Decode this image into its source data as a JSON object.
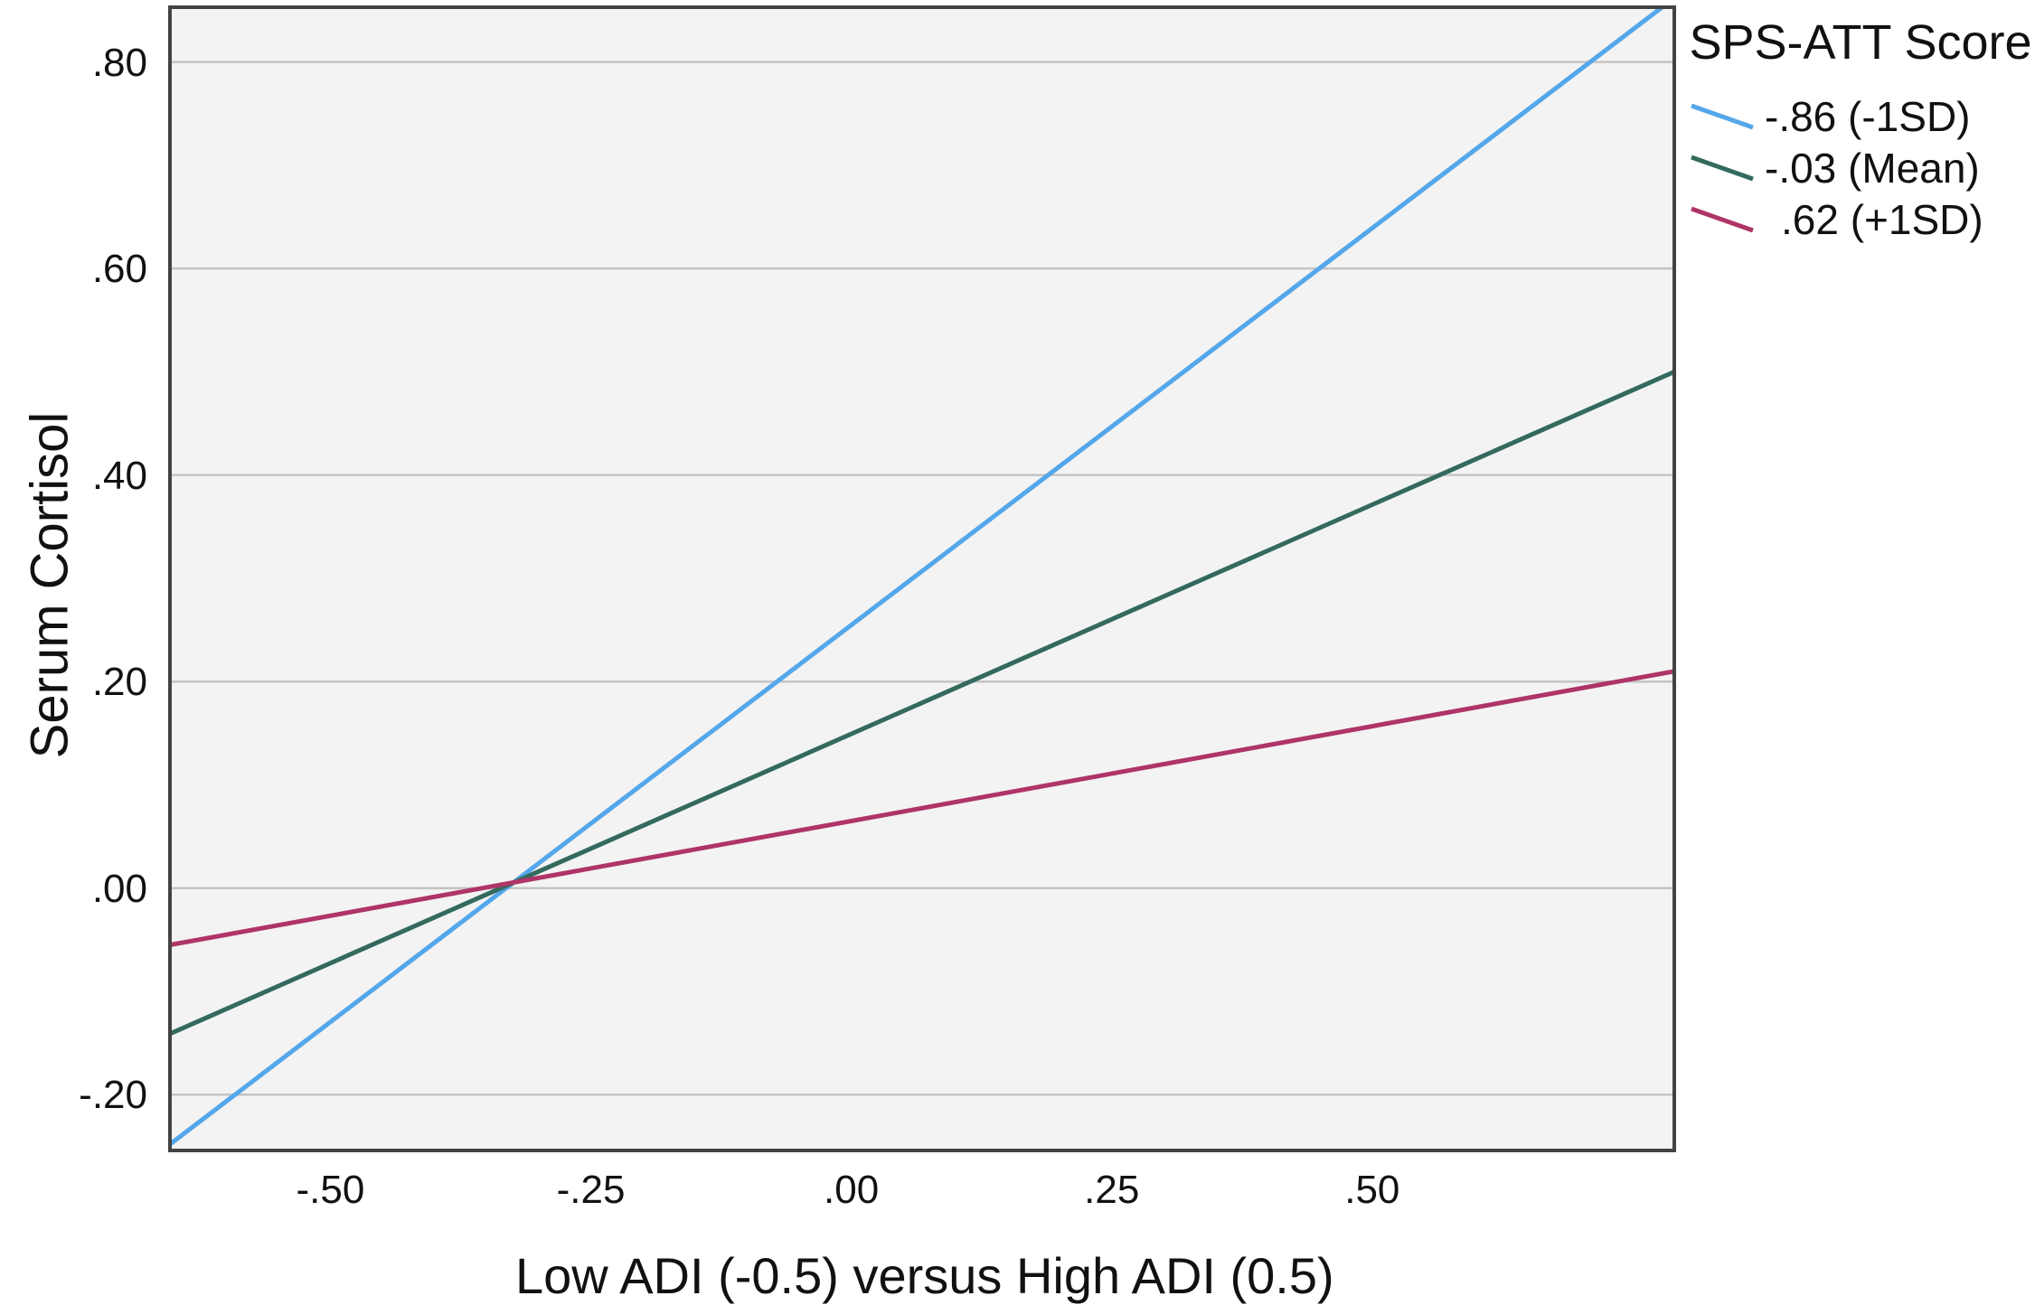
{
  "style": {
    "plot_bg": "#F3F3F3",
    "grid_color": "#C4C4C4",
    "border_color": "#434343",
    "text_color": "#111111",
    "line_width": 5,
    "border_width": 4,
    "grid_width": 2.5
  },
  "chart_data": {
    "type": "line",
    "title": "",
    "xlabel": "Low ADI (-0.5) versus High ADI (0.5)",
    "ylabel": "Serum Cortisol",
    "xlim": [
      -0.654,
      0.79
    ],
    "ylim": [
      -0.254,
      0.853
    ],
    "grid": "horizontal-only",
    "x_ticks": [
      {
        "value": -0.5,
        "label": "-.50"
      },
      {
        "value": -0.25,
        "label": "-.25"
      },
      {
        "value": 0.0,
        "label": ".00"
      },
      {
        "value": 0.25,
        "label": ".25"
      },
      {
        "value": 0.5,
        "label": ".50"
      }
    ],
    "y_ticks": [
      {
        "value": -0.2,
        "label": "-.20"
      },
      {
        "value": 0.0,
        "label": ".00"
      },
      {
        "value": 0.2,
        "label": ".20"
      },
      {
        "value": 0.4,
        "label": ".40"
      },
      {
        "value": 0.6,
        "label": ".60"
      },
      {
        "value": 0.8,
        "label": ".80"
      }
    ],
    "legend": {
      "title": "SPS-ATT Score",
      "position": "outside-top-right"
    },
    "series": [
      {
        "name": "-.86 (-1SD)",
        "color": "#54A7EA",
        "x": [
          -0.654,
          0.79
        ],
        "y": [
          -0.248,
          0.862
        ]
      },
      {
        "name": "-.03 (Mean)",
        "color": "#336A5E",
        "x": [
          -0.654,
          0.79
        ],
        "y": [
          -0.141,
          0.5
        ]
      },
      {
        "name": ".62 (+1SD)",
        "color": "#AF3467",
        "x": [
          -0.654,
          0.79
        ],
        "y": [
          -0.055,
          0.21
        ]
      }
    ],
    "annotations": {
      "lines_intersect_at": {
        "x": -0.33,
        "y": 0.005
      }
    }
  }
}
